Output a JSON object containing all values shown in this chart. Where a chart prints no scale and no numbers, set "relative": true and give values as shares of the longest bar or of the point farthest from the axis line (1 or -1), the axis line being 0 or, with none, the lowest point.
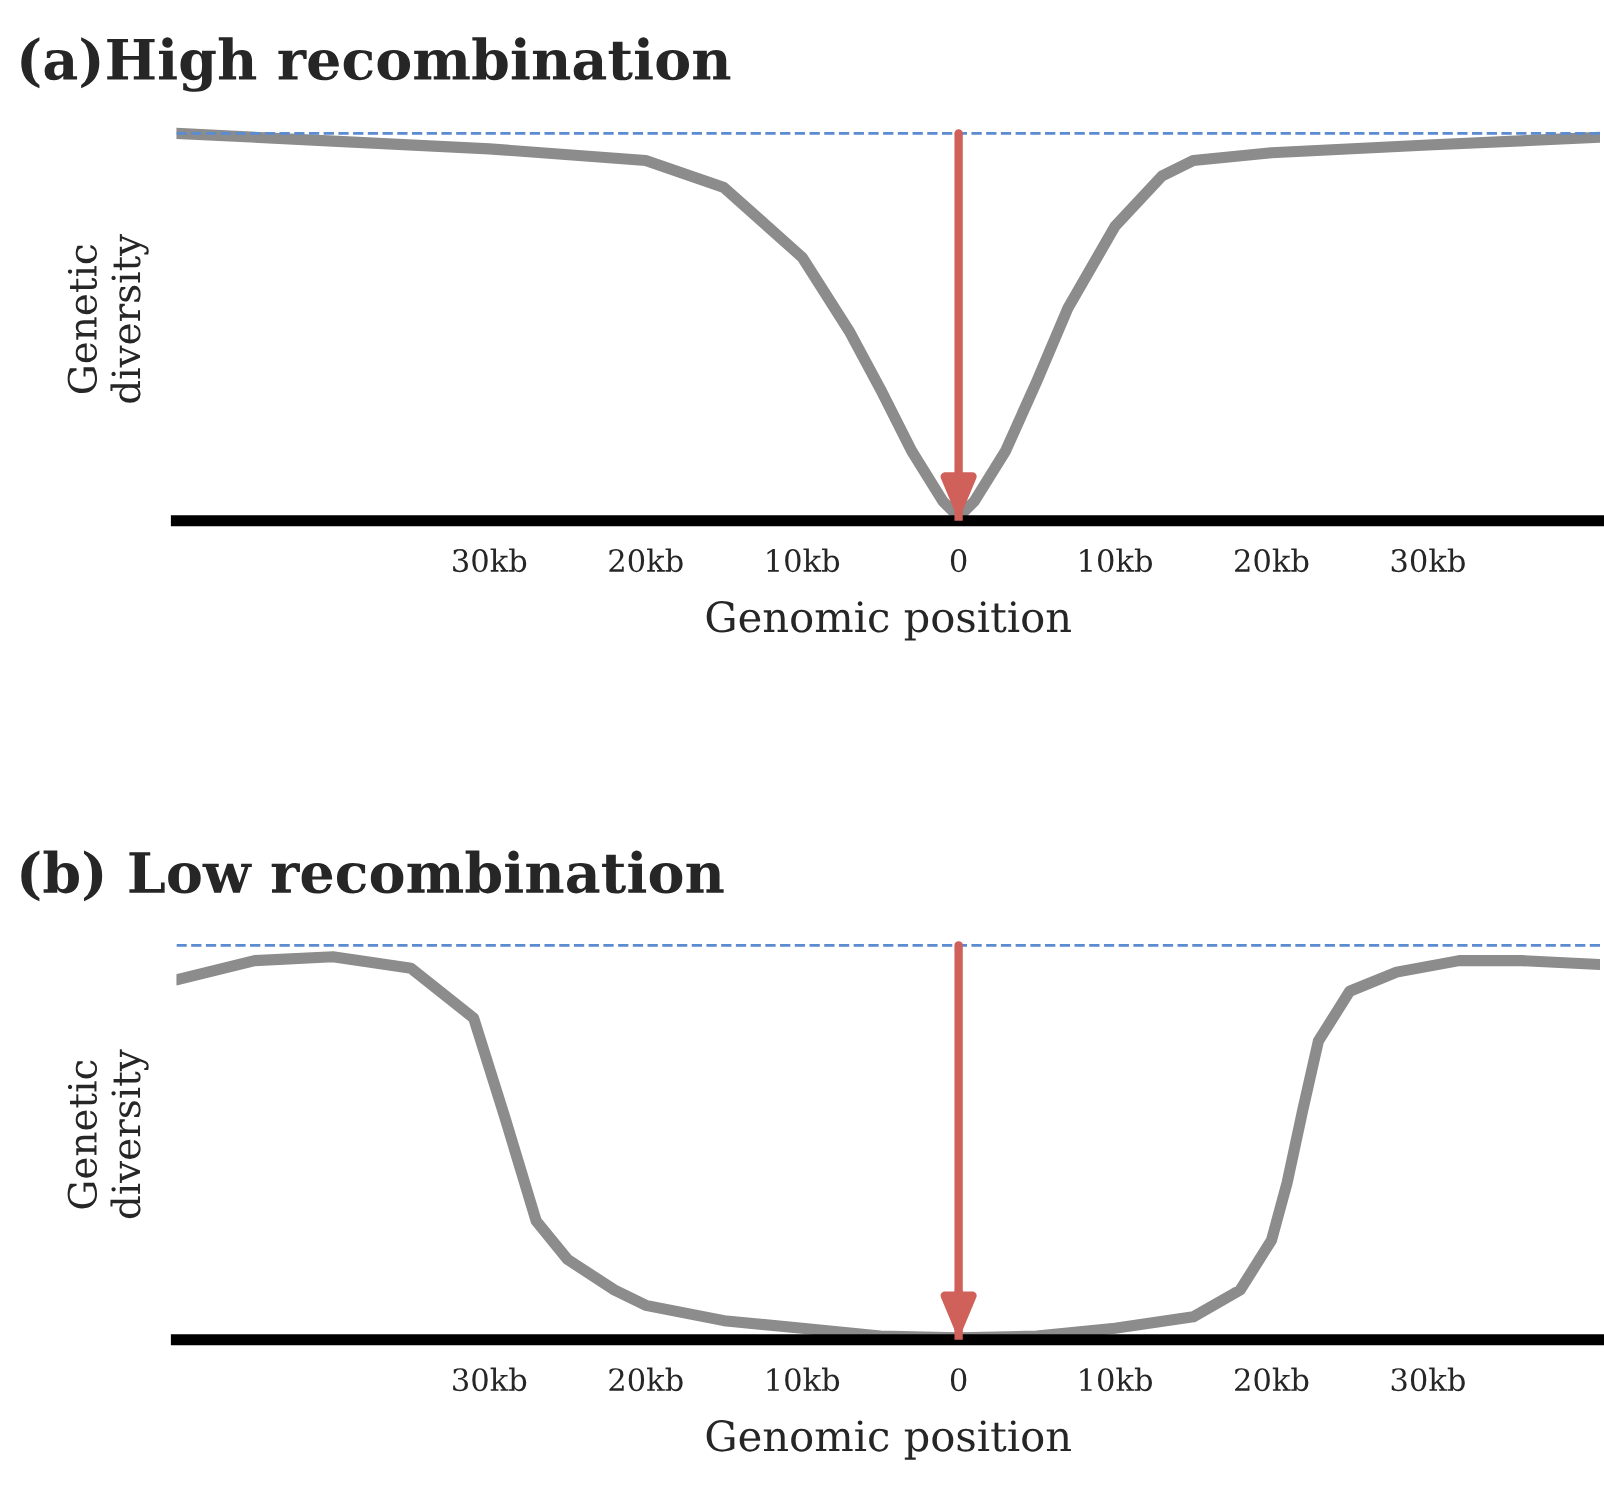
{
  "chart_data": [
    {
      "type": "line",
      "title": "(a)High recombination",
      "xlabel": "Genomic position",
      "ylabel": "Genetic\ndiversity",
      "relative": true,
      "xlim": [
        -50,
        41
      ],
      "xticks": [
        {
          "value": -30,
          "label": "30kb"
        },
        {
          "value": -20,
          "label": "20kb"
        },
        {
          "value": -10,
          "label": "10kb"
        },
        0,
        {
          "value": 10,
          "label": "10kb"
        },
        {
          "value": 20,
          "label": "20kb"
        },
        {
          "value": 30,
          "label": "30kb"
        }
      ],
      "x": [
        -50,
        -40,
        -30,
        -20,
        -15,
        -10,
        -7,
        -5,
        -3,
        -1,
        0,
        1,
        3,
        5,
        7,
        10,
        13,
        15,
        20,
        30,
        41
      ],
      "series": [
        {
          "color": "#8c8c8c",
          "values": [
            1.0,
            0.98,
            0.96,
            0.93,
            0.86,
            0.68,
            0.49,
            0.34,
            0.18,
            0.05,
            0.01,
            0.05,
            0.18,
            0.36,
            0.55,
            0.76,
            0.89,
            0.93,
            0.95,
            0.97,
            0.99
          ]
        }
      ],
      "ref_lines": [
        {
          "axis": "y",
          "value": 1,
          "color": "#5b8bd0",
          "line_style": "dashed"
        },
        {
          "axis": "x",
          "value": 0,
          "color": "#d0605a"
        }
      ]
    },
    {
      "type": "line",
      "title": "(b) Low recombination",
      "xlabel": "Genomic position",
      "ylabel": "Genetic\ndiversity",
      "relative": true,
      "xlim": [
        -50,
        41
      ],
      "xticks": [
        {
          "value": -30,
          "label": "30kb"
        },
        {
          "value": -20,
          "label": "20kb"
        },
        {
          "value": -10,
          "label": "10kb"
        },
        0,
        {
          "value": 10,
          "label": "10kb"
        },
        {
          "value": 20,
          "label": "20kb"
        },
        {
          "value": 30,
          "label": "30kb"
        }
      ],
      "x": [
        -50,
        -45,
        -40,
        -35,
        -31,
        -29,
        -27,
        -25,
        -22,
        -20,
        -15,
        -10,
        -5,
        0,
        5,
        10,
        15,
        18,
        20,
        21,
        22,
        23,
        25,
        28,
        32,
        36,
        41
      ],
      "series": [
        {
          "color": "#8c8c8c",
          "values": [
            0.94,
            0.99,
            1.0,
            0.97,
            0.84,
            0.58,
            0.31,
            0.21,
            0.13,
            0.09,
            0.05,
            0.03,
            0.01,
            0.005,
            0.01,
            0.03,
            0.06,
            0.13,
            0.26,
            0.41,
            0.6,
            0.78,
            0.91,
            0.96,
            0.99,
            0.99,
            0.98
          ]
        }
      ],
      "ref_lines": [
        {
          "axis": "y",
          "value": 1.03,
          "color": "#5b8bd0",
          "line_style": "dashed"
        },
        {
          "axis": "x",
          "value": 0,
          "color": "#d0605a"
        }
      ]
    }
  ]
}
